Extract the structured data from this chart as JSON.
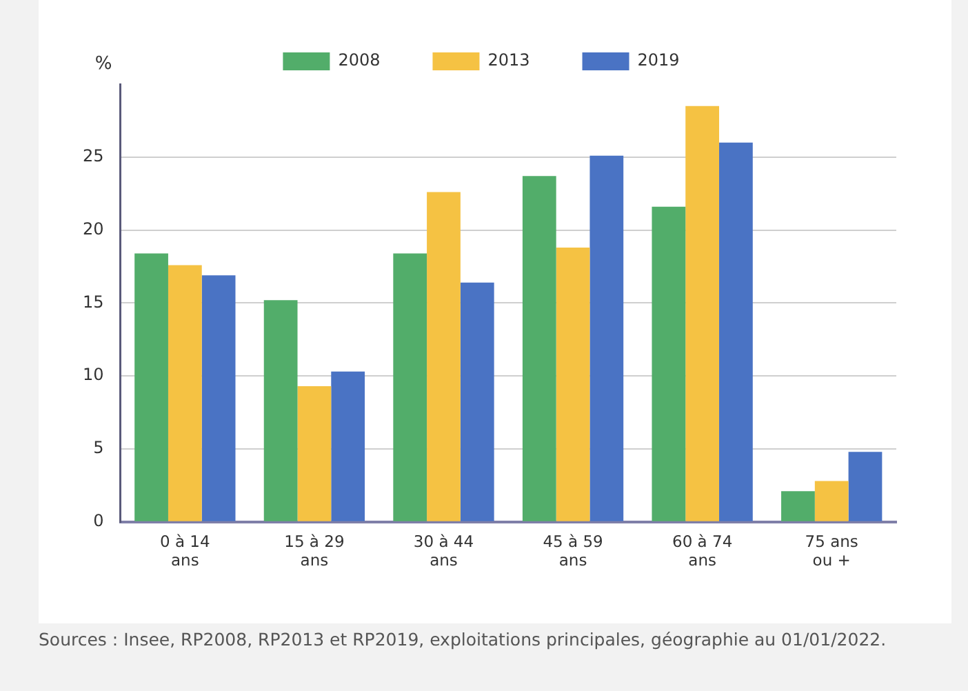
{
  "chart_data": {
    "type": "bar",
    "ylabel": "%",
    "categories": [
      "0 à 14 ans",
      "15 à 29 ans",
      "30 à 44 ans",
      "45 à 59 ans",
      "60 à 74 ans",
      "75 ans ou +"
    ],
    "series": [
      {
        "name": "2008",
        "color": "#52ad6a",
        "values": [
          18.4,
          15.2,
          18.4,
          23.7,
          21.6,
          2.1
        ]
      },
      {
        "name": "2013",
        "color": "#f5c243",
        "values": [
          17.6,
          9.3,
          22.6,
          18.8,
          28.5,
          2.8
        ]
      },
      {
        "name": "2019",
        "color": "#4a73c4",
        "values": [
          16.9,
          10.3,
          16.4,
          25.1,
          26.0,
          4.8
        ]
      }
    ],
    "ylim": [
      0,
      30
    ],
    "yticks": [
      0,
      5,
      10,
      15,
      20,
      25
    ],
    "grid": "y",
    "legend": "top",
    "annotations": [
      "Sources : Insee, RP2008, RP2013 et RP2019, exploitations principales, géographie au 01/01/2022."
    ]
  }
}
